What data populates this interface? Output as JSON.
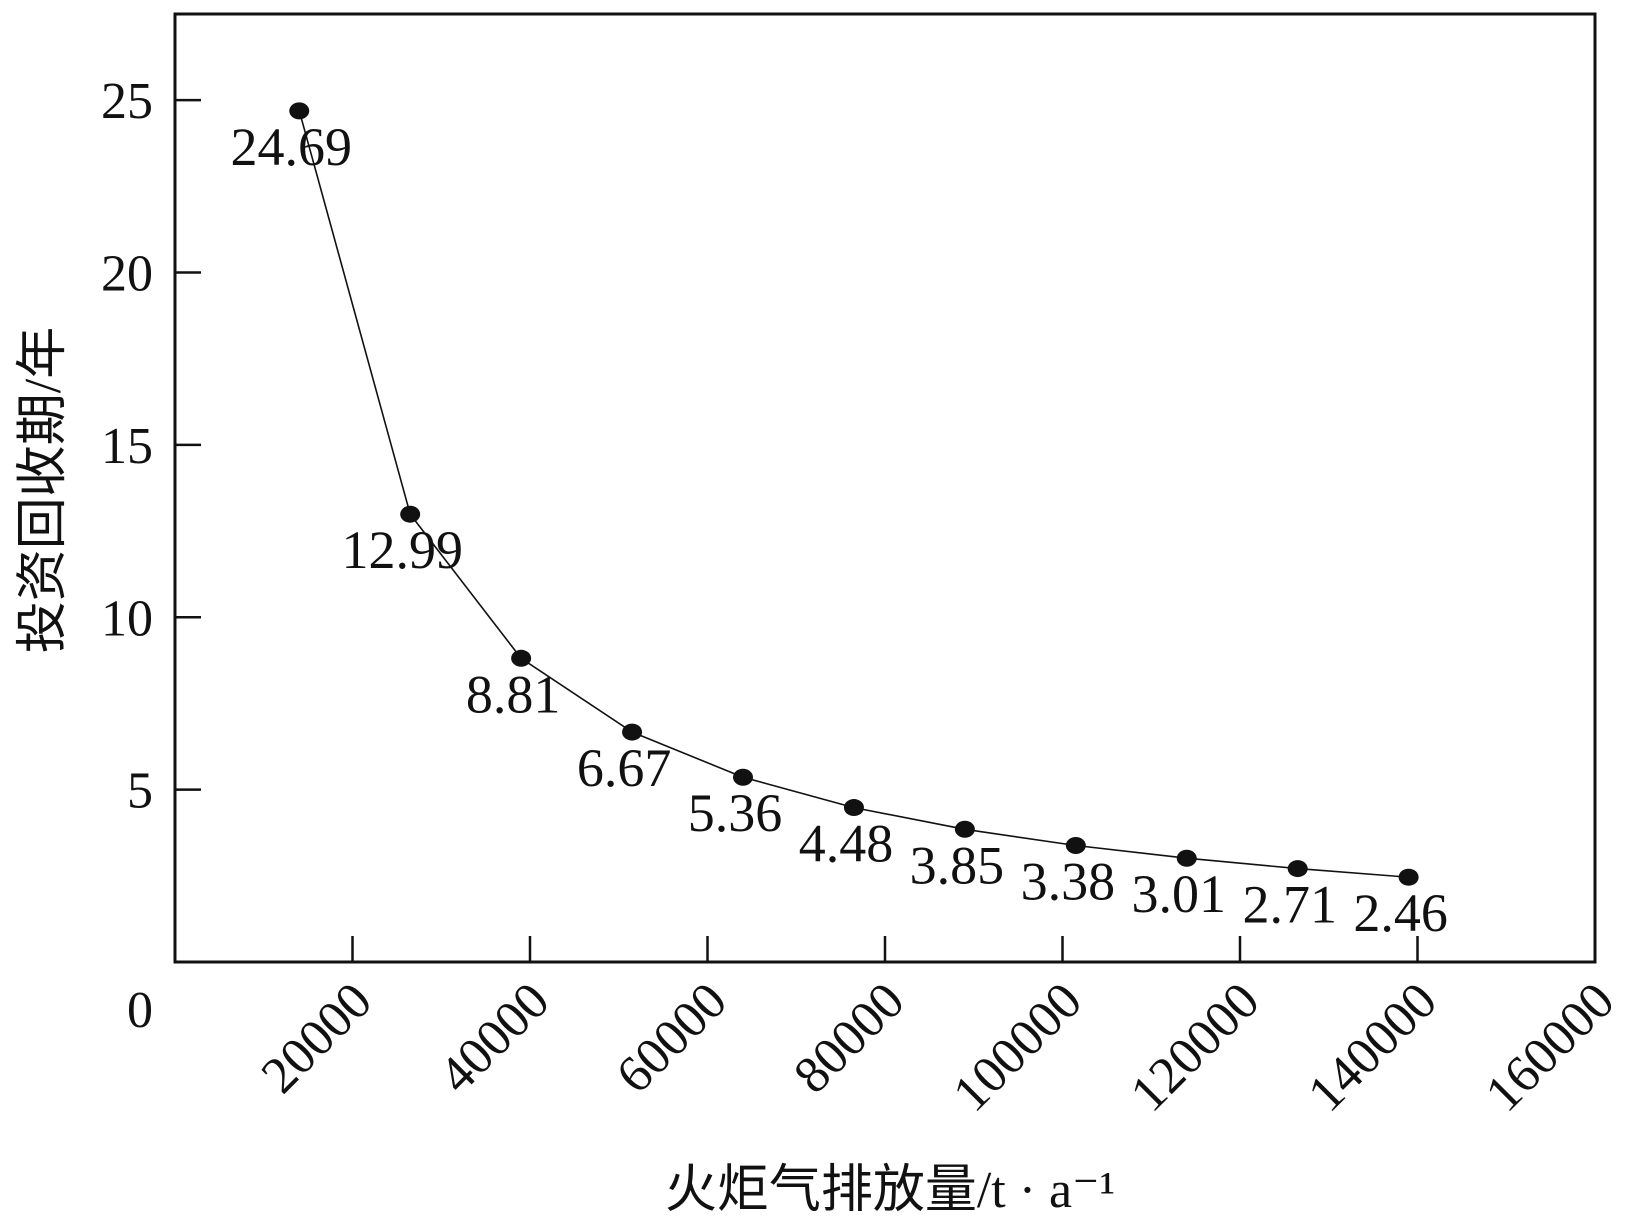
{
  "chart_data": {
    "type": "line",
    "title": "",
    "xlabel": "火炬气排放量/t · a⁻¹",
    "ylabel": "投资回收期/年",
    "x": [
      14000,
      26500,
      39000,
      51500,
      64000,
      76500,
      89000,
      101500,
      114000,
      126500,
      139000
    ],
    "series": [
      {
        "values": [
          24.69,
          12.99,
          8.81,
          6.67,
          5.36,
          4.48,
          3.85,
          3.38,
          3.01,
          2.71,
          2.46
        ],
        "data_labels": [
          "24.69",
          "12.99",
          "8.81",
          "6.67",
          "5.36",
          "4.48",
          "3.85",
          "3.38",
          "3.01",
          "2.71",
          "2.46"
        ]
      }
    ],
    "xlim": [
      0,
      160000
    ],
    "ylim": [
      0,
      27.5
    ],
    "xticks": [
      20000,
      40000,
      60000,
      80000,
      100000,
      120000,
      140000,
      160000
    ],
    "yticks": [
      5,
      10,
      15,
      20,
      25
    ],
    "origin_label": "0",
    "grid": false,
    "legend": "none",
    "colors": {
      "line": "#111111",
      "marker": "#111111",
      "axes": "#111111",
      "text": "#111111"
    }
  }
}
